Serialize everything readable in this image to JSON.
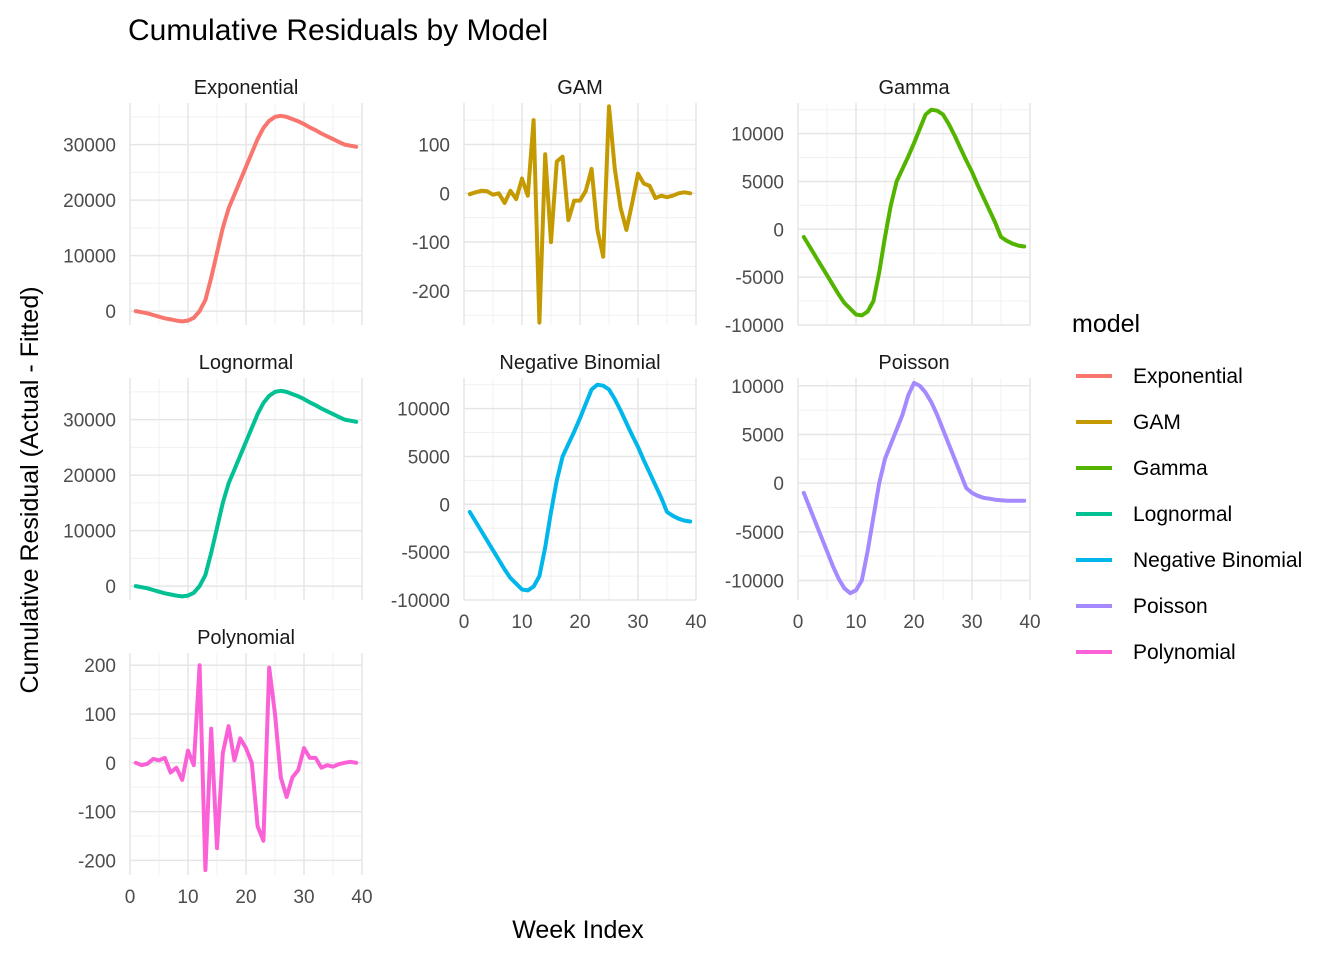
{
  "chart_data": {
    "type": "line",
    "title": "Cumulative Residuals by Model",
    "xlabel": "Week Index",
    "ylabel": "Cumulative Residual (Actual - Fitted)",
    "grid": true,
    "legend": {
      "title": "model",
      "placement": "right",
      "entries": [
        "Exponential",
        "GAM",
        "Gamma",
        "Lognormal",
        "Negative Binomial",
        "Poisson",
        "Polynomial"
      ]
    },
    "xlim": [
      0,
      40
    ],
    "x_ticks": [
      0,
      10,
      20,
      30,
      40
    ],
    "panels": [
      {
        "name": "Exponential",
        "color": "#F8766D",
        "ylim": [
          -2500,
          37500
        ],
        "y_ticks": [
          0,
          10000,
          20000,
          30000
        ],
        "x": [
          1,
          2,
          3,
          4,
          5,
          6,
          7,
          8,
          9,
          10,
          11,
          12,
          13,
          14,
          15,
          16,
          17,
          18,
          19,
          20,
          21,
          22,
          23,
          24,
          25,
          26,
          27,
          28,
          29,
          30,
          31,
          32,
          33,
          34,
          35,
          36,
          37,
          38,
          39
        ],
        "values": [
          0,
          -200,
          -400,
          -700,
          -1000,
          -1300,
          -1500,
          -1700,
          -1850,
          -1700,
          -1200,
          0,
          2000,
          6000,
          10500,
          15000,
          18500,
          21000,
          23500,
          26000,
          28500,
          31000,
          33000,
          34300,
          35000,
          35200,
          35000,
          34600,
          34200,
          33700,
          33100,
          32600,
          32000,
          31500,
          31000,
          30500,
          30000,
          29800,
          29600
        ]
      },
      {
        "name": "GAM",
        "color": "#C49A00",
        "ylim": [
          -270,
          185
        ],
        "y_ticks": [
          -200,
          -100,
          0,
          100
        ],
        "x": [
          1,
          2,
          3,
          4,
          5,
          6,
          7,
          8,
          9,
          10,
          11,
          12,
          13,
          14,
          15,
          16,
          17,
          18,
          19,
          20,
          21,
          22,
          23,
          24,
          25,
          26,
          27,
          28,
          29,
          30,
          31,
          32,
          33,
          34,
          35,
          36,
          37,
          38,
          39
        ],
        "values": [
          -2,
          2,
          5,
          4,
          -3,
          0,
          -20,
          5,
          -12,
          30,
          -5,
          150,
          -265,
          80,
          -100,
          65,
          75,
          -55,
          -15,
          -15,
          5,
          50,
          -75,
          -130,
          178,
          50,
          -30,
          -75,
          -20,
          40,
          20,
          15,
          -10,
          -5,
          -8,
          -5,
          0,
          2,
          0
        ]
      },
      {
        "name": "Gamma",
        "color": "#53B400",
        "ylim": [
          -10000,
          13200
        ],
        "y_ticks": [
          -10000,
          -5000,
          0,
          5000,
          10000
        ],
        "x": [
          1,
          2,
          3,
          4,
          5,
          6,
          7,
          8,
          9,
          10,
          11,
          12,
          13,
          14,
          15,
          16,
          17,
          18,
          19,
          20,
          21,
          22,
          23,
          24,
          25,
          26,
          27,
          28,
          29,
          30,
          31,
          32,
          33,
          34,
          35,
          36,
          37,
          38,
          39
        ],
        "values": [
          -800,
          -1800,
          -2800,
          -3800,
          -4800,
          -5800,
          -6800,
          -7700,
          -8300,
          -8900,
          -9000,
          -8600,
          -7500,
          -4500,
          -800,
          2500,
          5000,
          6300,
          7600,
          9000,
          10500,
          12000,
          12500,
          12400,
          12000,
          11000,
          9800,
          8500,
          7200,
          6000,
          4600,
          3300,
          2000,
          700,
          -800,
          -1200,
          -1500,
          -1700,
          -1800
        ]
      },
      {
        "name": "Lognormal",
        "color": "#00C094",
        "ylim": [
          -2500,
          37500
        ],
        "y_ticks": [
          0,
          10000,
          20000,
          30000
        ],
        "x": [
          1,
          2,
          3,
          4,
          5,
          6,
          7,
          8,
          9,
          10,
          11,
          12,
          13,
          14,
          15,
          16,
          17,
          18,
          19,
          20,
          21,
          22,
          23,
          24,
          25,
          26,
          27,
          28,
          29,
          30,
          31,
          32,
          33,
          34,
          35,
          36,
          37,
          38,
          39
        ],
        "values": [
          0,
          -200,
          -400,
          -700,
          -1000,
          -1300,
          -1500,
          -1700,
          -1850,
          -1700,
          -1200,
          0,
          2000,
          6000,
          10500,
          15000,
          18500,
          21000,
          23500,
          26000,
          28500,
          31000,
          33000,
          34300,
          35000,
          35200,
          35000,
          34600,
          34200,
          33700,
          33100,
          32600,
          32000,
          31500,
          31000,
          30500,
          30000,
          29800,
          29600
        ]
      },
      {
        "name": "Negative Binomial",
        "color": "#00B6EB",
        "ylim": [
          -10000,
          13200
        ],
        "y_ticks": [
          -10000,
          -5000,
          0,
          5000,
          10000
        ],
        "x": [
          1,
          2,
          3,
          4,
          5,
          6,
          7,
          8,
          9,
          10,
          11,
          12,
          13,
          14,
          15,
          16,
          17,
          18,
          19,
          20,
          21,
          22,
          23,
          24,
          25,
          26,
          27,
          28,
          29,
          30,
          31,
          32,
          33,
          34,
          35,
          36,
          37,
          38,
          39
        ],
        "values": [
          -800,
          -1800,
          -2800,
          -3800,
          -4800,
          -5800,
          -6800,
          -7700,
          -8300,
          -8900,
          -9000,
          -8600,
          -7500,
          -4500,
          -800,
          2500,
          5000,
          6300,
          7600,
          9000,
          10500,
          12000,
          12500,
          12400,
          12000,
          11000,
          9800,
          8500,
          7200,
          6000,
          4600,
          3300,
          2000,
          700,
          -800,
          -1200,
          -1500,
          -1700,
          -1800
        ]
      },
      {
        "name": "Poisson",
        "color": "#A58AFF",
        "ylim": [
          -12000,
          10800
        ],
        "y_ticks": [
          -10000,
          -5000,
          0,
          5000,
          10000
        ],
        "x": [
          1,
          2,
          3,
          4,
          5,
          6,
          7,
          8,
          9,
          10,
          11,
          12,
          13,
          14,
          15,
          16,
          17,
          18,
          19,
          20,
          21,
          22,
          23,
          24,
          25,
          26,
          27,
          28,
          29,
          30,
          31,
          32,
          33,
          34,
          35,
          36,
          37,
          38,
          39
        ],
        "values": [
          -1000,
          -2500,
          -4000,
          -5500,
          -7000,
          -8500,
          -9800,
          -10800,
          -11300,
          -11000,
          -10000,
          -7000,
          -3500,
          0,
          2500,
          4000,
          5500,
          7000,
          9000,
          10300,
          10000,
          9300,
          8300,
          7000,
          5500,
          4000,
          2500,
          1000,
          -500,
          -1000,
          -1300,
          -1500,
          -1600,
          -1700,
          -1750,
          -1800,
          -1800,
          -1800,
          -1800
        ]
      },
      {
        "name": "Polynomial",
        "color": "#FB61D7",
        "ylim": [
          -230,
          225
        ],
        "y_ticks": [
          -200,
          -100,
          0,
          100,
          200
        ],
        "x": [
          1,
          2,
          3,
          4,
          5,
          6,
          7,
          8,
          9,
          10,
          11,
          12,
          13,
          14,
          15,
          16,
          17,
          18,
          19,
          20,
          21,
          22,
          23,
          24,
          25,
          26,
          27,
          28,
          29,
          30,
          31,
          32,
          33,
          34,
          35,
          36,
          37,
          38,
          39
        ],
        "values": [
          0,
          -5,
          -2,
          8,
          5,
          10,
          -20,
          -10,
          -35,
          25,
          -5,
          200,
          -220,
          70,
          -175,
          20,
          75,
          5,
          50,
          30,
          0,
          -130,
          -160,
          195,
          100,
          -30,
          -70,
          -30,
          -15,
          30,
          10,
          10,
          -10,
          -5,
          -8,
          -3,
          0,
          2,
          0
        ]
      }
    ]
  }
}
